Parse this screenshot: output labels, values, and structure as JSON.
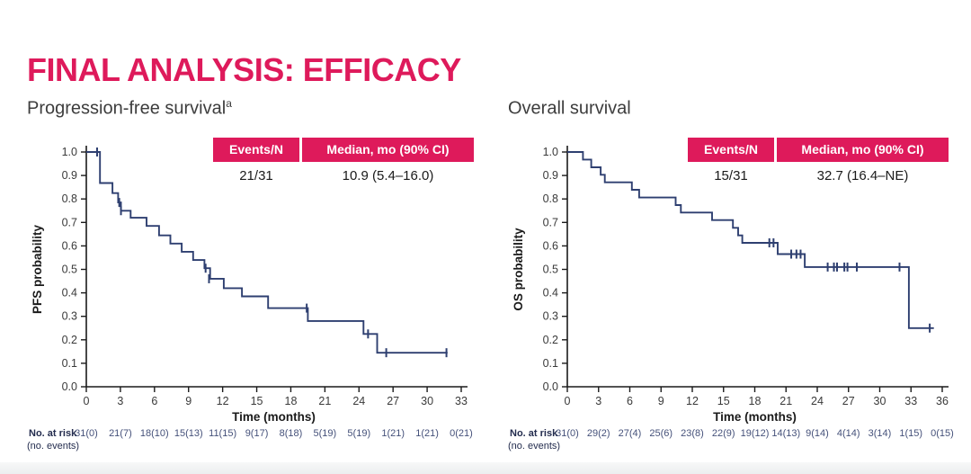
{
  "title": "FINAL ANALYSIS: EFFICACY",
  "colors": {
    "accent": "#DE1A5B",
    "curve": "#2e3f70",
    "axis": "#1a1a1a",
    "tick_text": "#3a3a3a",
    "at_risk_text": "#45517a",
    "at_risk_label_text": "#232c4e"
  },
  "chart_data": [
    {
      "type": "line",
      "variant": "kaplan-meier-step",
      "subtitle": "Progression-free survival",
      "subtitle_sup": "a",
      "ylabel": "PFS probability",
      "xlabel": "Time (months)",
      "ylim": [
        0.0,
        1.0
      ],
      "ytick_step": 0.1,
      "xlim": [
        0,
        33
      ],
      "xticks": [
        0,
        3,
        6,
        9,
        12,
        15,
        18,
        21,
        24,
        27,
        30,
        33
      ],
      "stats": {
        "events_header": "Events/N",
        "median_header": "Median, mo (90% CI)",
        "events": "21/31",
        "median": "10.9 (5.4–16.0)"
      },
      "points": [
        [
          0,
          1.0
        ],
        [
          1.2,
          0.868
        ],
        [
          2.3,
          0.825
        ],
        [
          2.8,
          0.785
        ],
        [
          3.05,
          0.75
        ],
        [
          3.9,
          0.72
        ],
        [
          5.3,
          0.685
        ],
        [
          6.4,
          0.645
        ],
        [
          7.4,
          0.61
        ],
        [
          8.4,
          0.575
        ],
        [
          9.4,
          0.54
        ],
        [
          10.4,
          0.505
        ],
        [
          10.9,
          0.46
        ],
        [
          12.1,
          0.42
        ],
        [
          13.7,
          0.385
        ],
        [
          16.0,
          0.335
        ],
        [
          19.5,
          0.28
        ],
        [
          24.4,
          0.225
        ],
        [
          25.6,
          0.145
        ]
      ],
      "end_time": 31.8,
      "censors": [
        [
          0.95,
          1.0
        ],
        [
          2.9,
          0.785
        ],
        [
          3.05,
          0.75
        ],
        [
          10.5,
          0.505
        ],
        [
          10.8,
          0.46
        ],
        [
          19.4,
          0.335
        ],
        [
          24.8,
          0.225
        ],
        [
          26.4,
          0.145
        ],
        [
          31.7,
          0.145
        ]
      ],
      "at_risk_label": "No. at risk",
      "at_risk_sublabel": "(no. events)",
      "at_risk": [
        "31(0)",
        "21(7)",
        "18(10)",
        "15(13)",
        "11(15)",
        "9(17)",
        "8(18)",
        "5(19)",
        "5(19)",
        "1(21)",
        "1(21)",
        "0(21)"
      ]
    },
    {
      "type": "line",
      "variant": "kaplan-meier-step",
      "subtitle": "Overall survival",
      "subtitle_sup": "",
      "ylabel": "OS probability",
      "xlabel": "Time (months)",
      "ylim": [
        0.0,
        1.0
      ],
      "ytick_step": 0.1,
      "xlim": [
        0,
        36
      ],
      "xticks": [
        0,
        3,
        6,
        9,
        12,
        15,
        18,
        21,
        24,
        27,
        30,
        33,
        36
      ],
      "stats": {
        "events_header": "Events/N",
        "median_header": "Median, mo (90% CI)",
        "events": "15/31",
        "median": "32.7 (16.4–NE)"
      },
      "points": [
        [
          0,
          1.0
        ],
        [
          1.5,
          0.968
        ],
        [
          2.3,
          0.935
        ],
        [
          3.2,
          0.903
        ],
        [
          3.6,
          0.871
        ],
        [
          6.2,
          0.839
        ],
        [
          6.9,
          0.806
        ],
        [
          10.4,
          0.774
        ],
        [
          10.9,
          0.742
        ],
        [
          13.9,
          0.71
        ],
        [
          15.9,
          0.677
        ],
        [
          16.4,
          0.645
        ],
        [
          16.8,
          0.613
        ],
        [
          20.2,
          0.565
        ],
        [
          22.8,
          0.51
        ],
        [
          32.8,
          0.25
        ]
      ],
      "end_time": 35.2,
      "censors": [
        [
          19.4,
          0.613
        ],
        [
          19.8,
          0.613
        ],
        [
          21.5,
          0.565
        ],
        [
          22.0,
          0.565
        ],
        [
          22.4,
          0.565
        ],
        [
          25.0,
          0.51
        ],
        [
          25.6,
          0.51
        ],
        [
          25.9,
          0.51
        ],
        [
          26.6,
          0.51
        ],
        [
          26.9,
          0.51
        ],
        [
          27.8,
          0.51
        ],
        [
          31.9,
          0.51
        ],
        [
          34.8,
          0.25
        ]
      ],
      "at_risk_label": "No. at risk",
      "at_risk_sublabel": "(no. events)",
      "at_risk": [
        "31(0)",
        "29(2)",
        "27(4)",
        "25(6)",
        "23(8)",
        "22(9)",
        "19(12)",
        "14(13)",
        "9(14)",
        "4(14)",
        "3(14)",
        "1(15)",
        "0(15)"
      ]
    }
  ]
}
